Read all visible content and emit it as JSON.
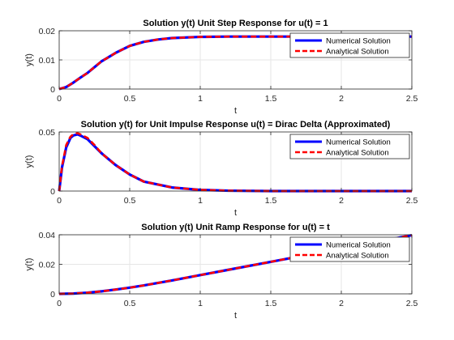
{
  "chart_data": [
    {
      "type": "line",
      "title": "Solution y(t) Unit Step Response for u(t) = 1",
      "xlabel": "t",
      "ylabel": "y(t)",
      "xlim": [
        0,
        2.5
      ],
      "ylim": [
        0,
        0.02
      ],
      "xticks": [
        0,
        0.5,
        1,
        1.5,
        2,
        2.5
      ],
      "yticks": [
        0,
        0.01,
        0.02
      ],
      "xtick_labels": [
        "0",
        "0.5",
        "1",
        "1.5",
        "2",
        "2.5"
      ],
      "ytick_labels": [
        "0",
        "0.01",
        "0.02"
      ],
      "grid": true,
      "legend_position": "top-right",
      "x": [
        0,
        0.05,
        0.1,
        0.15,
        0.2,
        0.25,
        0.3,
        0.4,
        0.5,
        0.6,
        0.7,
        0.8,
        1.0,
        1.2,
        1.5,
        2.0,
        2.5
      ],
      "series": [
        {
          "name": "Numerical Solution",
          "color": "#0000ff",
          "style": "solid",
          "values": [
            0,
            0.0007,
            0.0022,
            0.0039,
            0.0055,
            0.0075,
            0.0095,
            0.0124,
            0.0148,
            0.0162,
            0.017,
            0.0175,
            0.0179,
            0.018,
            0.018,
            0.018,
            0.018
          ]
        },
        {
          "name": "Analytical Solution",
          "color": "#ff0000",
          "style": "dashed",
          "values": [
            0,
            0.0007,
            0.0022,
            0.0039,
            0.0055,
            0.0075,
            0.0095,
            0.0124,
            0.0148,
            0.0162,
            0.017,
            0.0175,
            0.0179,
            0.018,
            0.018,
            0.018,
            0.018
          ]
        }
      ]
    },
    {
      "type": "line",
      "title": "Solution y(t) for Unit Impulse Response u(t) = Dirac Delta (Approximated)",
      "xlabel": "t",
      "ylabel": "y(t)",
      "xlim": [
        0,
        2.5
      ],
      "ylim": [
        0,
        0.05
      ],
      "xticks": [
        0,
        0.5,
        1,
        1.5,
        2,
        2.5
      ],
      "yticks": [
        0,
        0.05
      ],
      "xtick_labels": [
        "0",
        "0.5",
        "1",
        "1.5",
        "2",
        "2.5"
      ],
      "ytick_labels": [
        "0",
        "0.05"
      ],
      "grid": true,
      "legend_position": "top-right",
      "x": [
        0,
        0.02,
        0.05,
        0.08,
        0.1,
        0.13,
        0.15,
        0.2,
        0.25,
        0.3,
        0.4,
        0.5,
        0.6,
        0.8,
        1.0,
        1.2,
        1.5,
        2.0,
        2.5
      ],
      "series": [
        {
          "name": "Numerical Solution",
          "color": "#0000ff",
          "style": "solid",
          "values": [
            0,
            0.02,
            0.037,
            0.045,
            0.047,
            0.048,
            0.047,
            0.044,
            0.038,
            0.032,
            0.022,
            0.014,
            0.008,
            0.003,
            0.001,
            0.0003,
            0,
            0,
            0
          ]
        },
        {
          "name": "Analytical Solution",
          "color": "#ff0000",
          "style": "dashed",
          "values": [
            0,
            0.021,
            0.039,
            0.046,
            0.048,
            0.049,
            0.048,
            0.045,
            0.039,
            0.032,
            0.022,
            0.014,
            0.008,
            0.003,
            0.001,
            0.0003,
            0,
            0,
            0
          ]
        }
      ]
    },
    {
      "type": "line",
      "title": "Solution y(t) Unit Ramp Response for u(t) = t",
      "xlabel": "t",
      "ylabel": "y(t)",
      "xlim": [
        0,
        2.5
      ],
      "ylim": [
        0,
        0.04
      ],
      "xticks": [
        0,
        0.5,
        1,
        1.5,
        2,
        2.5
      ],
      "yticks": [
        0,
        0.02,
        0.04
      ],
      "xtick_labels": [
        "0",
        "0.5",
        "1",
        "1.5",
        "2",
        "2.5"
      ],
      "ytick_labels": [
        "0",
        "0.02",
        "0.04"
      ],
      "grid": true,
      "legend_position": "top-right",
      "x": [
        0,
        0.1,
        0.2,
        0.3,
        0.4,
        0.5,
        0.6,
        0.8,
        1.0,
        1.2,
        1.5,
        1.8,
        2.0,
        2.2,
        2.5
      ],
      "series": [
        {
          "name": "Numerical Solution",
          "color": "#0000ff",
          "style": "solid",
          "values": [
            0,
            0.0002,
            0.0008,
            0.0017,
            0.0029,
            0.0042,
            0.0057,
            0.0091,
            0.0127,
            0.0163,
            0.0217,
            0.0271,
            0.0307,
            0.0343,
            0.0397
          ]
        },
        {
          "name": "Analytical Solution",
          "color": "#ff0000",
          "style": "dashed",
          "values": [
            0,
            0.0002,
            0.0008,
            0.0017,
            0.0029,
            0.0042,
            0.0057,
            0.0091,
            0.0127,
            0.0163,
            0.0217,
            0.0271,
            0.0307,
            0.0343,
            0.0397
          ]
        }
      ]
    }
  ]
}
